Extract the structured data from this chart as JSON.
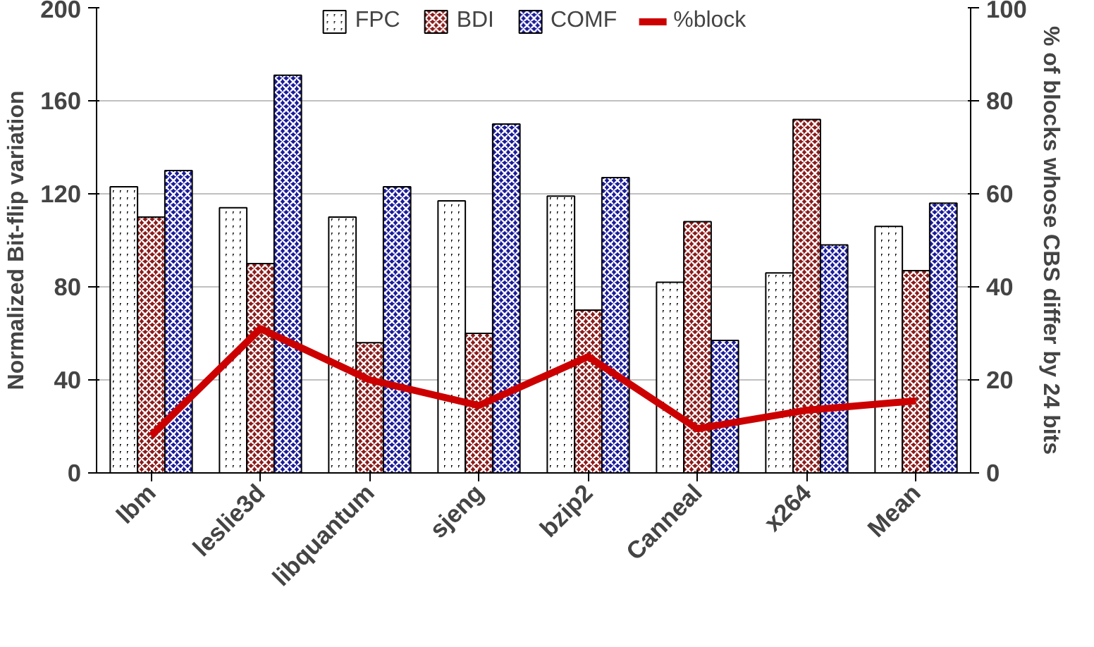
{
  "chart_data": {
    "type": "bar",
    "categories": [
      "lbm",
      "leslie3d",
      "libquantum",
      "sjeng",
      "bzip2",
      "Canneal",
      "x264",
      "Mean"
    ],
    "ylabel": "Normalized Bit-flip variation",
    "y2label": "% of blocks whose CBS differ by 24 bits",
    "ylim": [
      0,
      200
    ],
    "yticks": [
      0,
      40,
      80,
      120,
      160,
      200
    ],
    "y2lim": [
      0,
      100
    ],
    "y2ticks": [
      0,
      20,
      40,
      60,
      80,
      100
    ],
    "grid": "y",
    "legend": "top",
    "series": [
      {
        "name": "FPC",
        "color": "#000000",
        "values": [
          123,
          114,
          110,
          117,
          119,
          82,
          86,
          106
        ]
      },
      {
        "name": "BDI",
        "color": "#8b1a1a",
        "values": [
          110,
          90,
          56,
          60,
          70,
          108,
          152,
          87
        ]
      },
      {
        "name": "COMF",
        "color": "#1a1a9b",
        "values": [
          130,
          171,
          123,
          150,
          127,
          57,
          98,
          116
        ]
      },
      {
        "name": "%block",
        "type": "line",
        "axis": "y2",
        "color": "#cc0000",
        "values": [
          8,
          31,
          20,
          14.5,
          25,
          9.5,
          13.5,
          15.5
        ]
      }
    ]
  }
}
